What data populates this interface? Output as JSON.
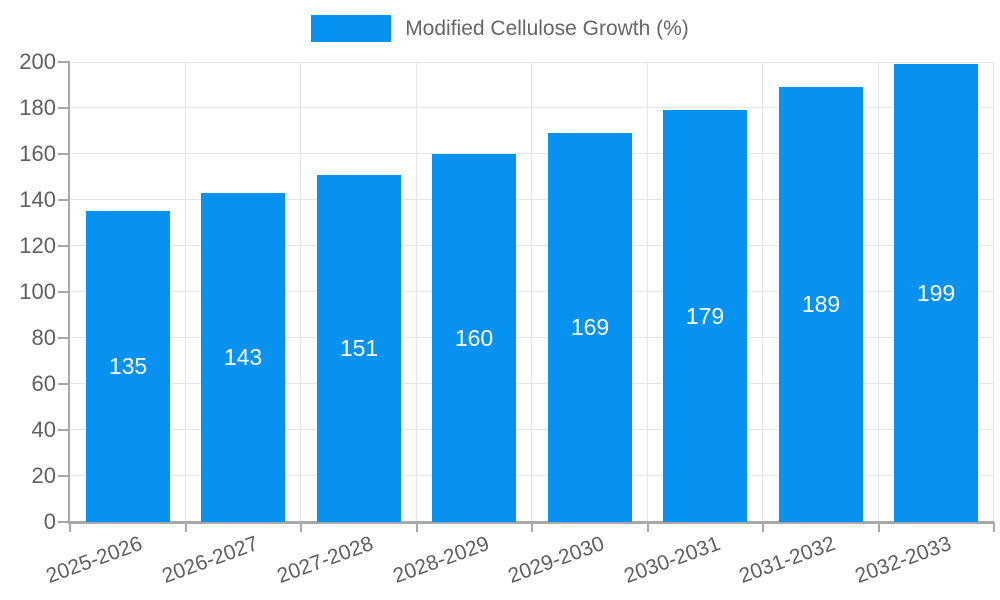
{
  "chart_data": {
    "type": "bar",
    "title": "",
    "xlabel": "",
    "ylabel": "",
    "categories": [
      "2025-2026",
      "2026-2027",
      "2027-2028",
      "2028-2029",
      "2029-2030",
      "2030-2031",
      "2031-2032",
      "2032-2033"
    ],
    "series": [
      {
        "name": "Modified Cellulose Growth (%)",
        "values": [
          135,
          143,
          151,
          160,
          169,
          179,
          189,
          199
        ]
      }
    ],
    "ylim": [
      0,
      200
    ],
    "yticks": [
      0,
      20,
      40,
      60,
      80,
      100,
      120,
      140,
      160,
      180,
      200
    ],
    "grid": true,
    "legend_position": "top",
    "colors": {
      "bar": "#0791f1",
      "value_label": "#ffffff",
      "axis_text": "#606060",
      "legend_text": "#666666",
      "grid": "#e5e5e5",
      "axis_line": "#a8a8a8"
    }
  }
}
